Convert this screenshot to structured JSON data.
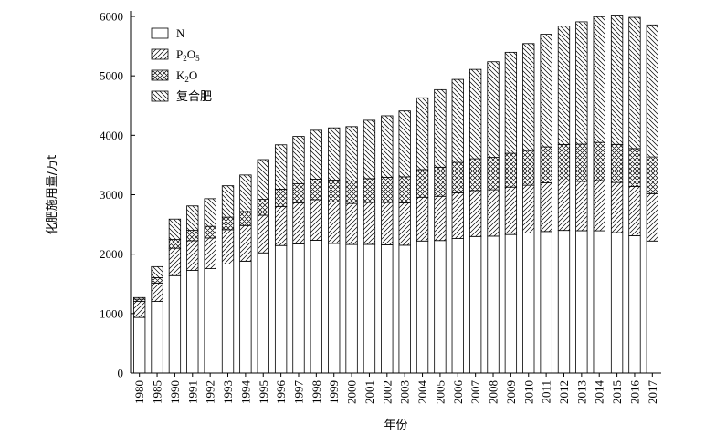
{
  "chart_data": {
    "type": "bar",
    "stacked": true,
    "title": "",
    "xlabel": "年份",
    "ylabel": "化肥施用量/万t",
    "ylim": [
      0,
      6000
    ],
    "yticks": [
      0,
      1000,
      2000,
      3000,
      4000,
      5000,
      6000
    ],
    "grid": false,
    "legend_position": "top-left",
    "categories": [
      "1980",
      "1985",
      "1990",
      "1991",
      "1992",
      "1993",
      "1994",
      "1995",
      "1996",
      "1997",
      "1998",
      "1999",
      "2000",
      "2001",
      "2002",
      "2003",
      "2004",
      "2005",
      "2006",
      "2007",
      "2008",
      "2009",
      "2010",
      "2011",
      "2012",
      "2013",
      "2014",
      "2015",
      "2016",
      "2017"
    ],
    "series": [
      {
        "name": "N",
        "name_parts": [
          {
            "t": "N"
          }
        ],
        "pattern": "none",
        "values": [
          934,
          1204,
          1638,
          1726,
          1756,
          1835,
          1882,
          2022,
          2145,
          2172,
          2234,
          2181,
          2162,
          2164,
          2157,
          2150,
          2221,
          2229,
          2263,
          2297,
          2303,
          2330,
          2354,
          2381,
          2399,
          2394,
          2393,
          2362,
          2310,
          2221
        ]
      },
      {
        "name": "P2O5",
        "name_parts": [
          {
            "t": "P"
          },
          {
            "t": "2",
            "sub": true
          },
          {
            "t": "O"
          },
          {
            "t": "5",
            "sub": true
          }
        ],
        "pattern": "diag-right",
        "values": [
          273,
          310,
          462,
          500,
          516,
          576,
          600,
          632,
          658,
          689,
          682,
          698,
          690,
          706,
          712,
          713,
          736,
          744,
          770,
          773,
          780,
          797,
          805,
          819,
          829,
          830,
          846,
          843,
          830,
          797
        ]
      },
      {
        "name": "K2O",
        "name_parts": [
          {
            "t": "K"
          },
          {
            "t": "2",
            "sub": true
          },
          {
            "t": "O"
          }
        ],
        "pattern": "crosshatch",
        "values": [
          34,
          90,
          147,
          174,
          196,
          212,
          234,
          268,
          290,
          322,
          345,
          366,
          376,
          400,
          423,
          438,
          466,
          490,
          511,
          535,
          545,
          570,
          585,
          605,
          618,
          627,
          641,
          642,
          637,
          617
        ]
      },
      {
        "name": "复合肥",
        "name_parts": [
          {
            "t": "复合肥"
          }
        ],
        "pattern": "diag-left",
        "values": [
          28,
          186,
          343,
          412,
          465,
          528,
          616,
          669,
          747,
          798,
          823,
          880,
          918,
          982,
          1036,
          1108,
          1207,
          1304,
          1396,
          1503,
          1609,
          1699,
          1799,
          1895,
          1990,
          2058,
          2116,
          2176,
          2207,
          2222
        ]
      }
    ]
  }
}
